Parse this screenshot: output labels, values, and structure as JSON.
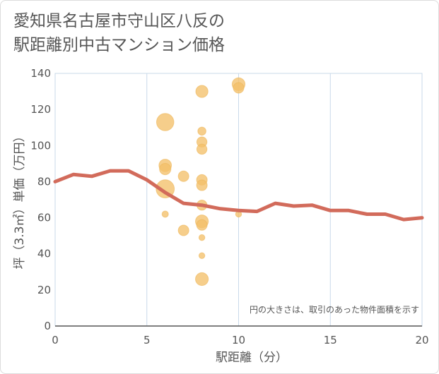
{
  "title": "愛知県名古屋市守山区八反の\n駅距離別中古マンション価格",
  "chart_data": {
    "type": "scatter",
    "xlabel": "駅距離（分）",
    "ylabel": "坪（3.3㎡）単価（万円）",
    "xlim": [
      0,
      20
    ],
    "ylim": [
      0,
      140
    ],
    "x_ticks": [
      "0",
      "5",
      "10",
      "15",
      "20"
    ],
    "y_ticks": [
      "0",
      "20",
      "40",
      "60",
      "80",
      "100",
      "120",
      "140"
    ],
    "note": "円の大きさは、取引のあった物件面積を示す",
    "grid": true,
    "bubbles": [
      {
        "x": 6,
        "y": 113,
        "size": 3.2
      },
      {
        "x": 6,
        "y": 76,
        "size": 3.6
      },
      {
        "x": 6,
        "y": 89,
        "size": 1.5
      },
      {
        "x": 6,
        "y": 87,
        "size": 1.2
      },
      {
        "x": 6,
        "y": 62,
        "size": 0.25
      },
      {
        "x": 7,
        "y": 83,
        "size": 1.0
      },
      {
        "x": 7,
        "y": 53,
        "size": 1.0
      },
      {
        "x": 8,
        "y": 130,
        "size": 1.4
      },
      {
        "x": 8,
        "y": 108,
        "size": 0.5
      },
      {
        "x": 8,
        "y": 102,
        "size": 0.9
      },
      {
        "x": 8,
        "y": 98,
        "size": 0.9
      },
      {
        "x": 8,
        "y": 81,
        "size": 1.0
      },
      {
        "x": 8,
        "y": 78,
        "size": 1.0
      },
      {
        "x": 8,
        "y": 67,
        "size": 0.9
      },
      {
        "x": 8,
        "y": 58,
        "size": 1.6
      },
      {
        "x": 8,
        "y": 56,
        "size": 1.0
      },
      {
        "x": 8,
        "y": 49,
        "size": 0.2
      },
      {
        "x": 8,
        "y": 39,
        "size": 0.2
      },
      {
        "x": 8,
        "y": 26,
        "size": 1.6
      },
      {
        "x": 10,
        "y": 134,
        "size": 1.6
      },
      {
        "x": 10,
        "y": 132,
        "size": 1.0
      },
      {
        "x": 10,
        "y": 62,
        "size": 0.2
      }
    ],
    "trend": {
      "x": [
        0,
        1,
        2,
        3,
        4,
        5,
        6,
        7,
        8,
        9,
        10,
        11,
        12,
        13,
        14,
        15,
        16,
        17,
        18,
        19,
        20
      ],
      "y": [
        80,
        84,
        83,
        86,
        86,
        81,
        74,
        68,
        67,
        65,
        64,
        63.5,
        68,
        66.5,
        67,
        64,
        64,
        62,
        62,
        59,
        60
      ]
    },
    "colors": {
      "bubble": "#f3c06a",
      "bubble_stroke": "#ecb659",
      "trend": "#d26b5b",
      "grid": "#c9d9ea",
      "axis": "#555555"
    }
  }
}
